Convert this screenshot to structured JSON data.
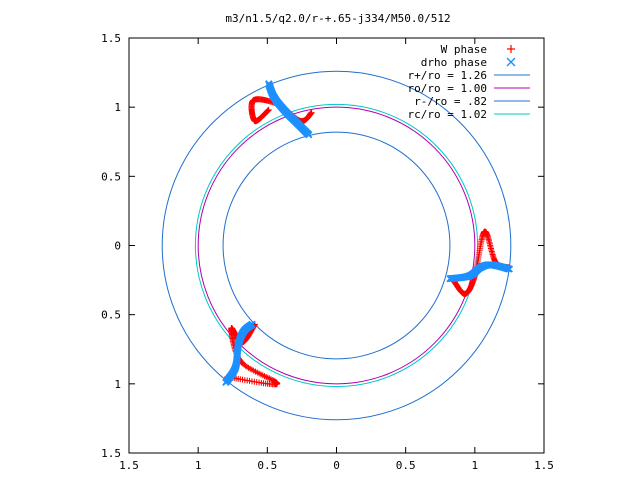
{
  "chart_data": {
    "type": "scatter",
    "title": "m3/n1.5/q2.0/r-+.65-j334/M50.0/512",
    "xlabel": "",
    "ylabel": "",
    "xlim": [
      -1.5,
      1.5
    ],
    "ylim": [
      -1.5,
      1.5
    ],
    "xticks": [
      -1.5,
      -1,
      -0.5,
      0,
      0.5,
      1,
      1.5
    ],
    "yticks": [
      -1.5,
      -1,
      -0.5,
      0,
      0.5,
      1,
      1.5
    ],
    "xtick_labels": [
      "1.5",
      "1",
      "0.5",
      "0",
      "0.5",
      "1",
      "1.5"
    ],
    "ytick_labels": [
      "1.5",
      "1",
      "0.5",
      "0",
      "0.5",
      "1",
      "1.5"
    ],
    "grid": false,
    "legend_position": "top-right",
    "series": [
      {
        "name": "W phase",
        "marker": "plus",
        "color": "#ff0000",
        "lobes": [
          {
            "points": [
              [
                1.25,
                -0.16
              ],
              [
                1.15,
                -0.12
              ],
              [
                1.07,
                0.1
              ],
              [
                1.0,
                -0.22
              ],
              [
                0.93,
                -0.35
              ],
              [
                0.85,
                -0.26
              ]
            ]
          },
          {
            "points": [
              [
                -0.59,
                -0.57
              ],
              [
                -0.68,
                -0.7
              ],
              [
                -0.76,
                -0.6
              ],
              [
                -0.69,
                -0.84
              ],
              [
                -0.43,
                -1.0
              ],
              [
                -0.79,
                -0.95
              ]
            ]
          },
          {
            "points": [
              [
                -0.49,
                0.98
              ],
              [
                -0.59,
                0.9
              ],
              [
                -0.6,
                1.05
              ],
              [
                -0.42,
                1.02
              ],
              [
                -0.26,
                0.9
              ],
              [
                -0.18,
                0.96
              ]
            ]
          }
        ]
      },
      {
        "name": "drho phase",
        "marker": "cross",
        "color": "#1e90ff",
        "lobes": [
          {
            "points": [
              [
                1.25,
                -0.17
              ],
              [
                1.12,
                -0.14
              ],
              [
                1.04,
                -0.16
              ],
              [
                0.96,
                -0.22
              ],
              [
                0.82,
                -0.24
              ]
            ]
          },
          {
            "points": [
              [
                -0.61,
                -0.57
              ],
              [
                -0.67,
                -0.62
              ],
              [
                -0.71,
                -0.72
              ],
              [
                -0.73,
                -0.88
              ],
              [
                -0.8,
                -0.99
              ]
            ]
          },
          {
            "points": [
              [
                -0.49,
                1.17
              ],
              [
                -0.45,
                1.07
              ],
              [
                -0.37,
                0.97
              ],
              [
                -0.29,
                0.89
              ],
              [
                -0.2,
                0.8
              ]
            ]
          }
        ]
      },
      {
        "name": "r+/ro = 1.26",
        "type": "circle",
        "radius": 1.26,
        "color": "#1f6fd0"
      },
      {
        "name": "ro/ro = 1.00",
        "type": "circle",
        "radius": 1.0,
        "color": "#b000b0"
      },
      {
        "name": "r-/ro = .82",
        "type": "circle",
        "radius": 0.82,
        "color": "#1f6fd0"
      },
      {
        "name": "rc/ro = 1.02",
        "type": "circle",
        "radius": 1.02,
        "color": "#00c8c8"
      }
    ]
  }
}
